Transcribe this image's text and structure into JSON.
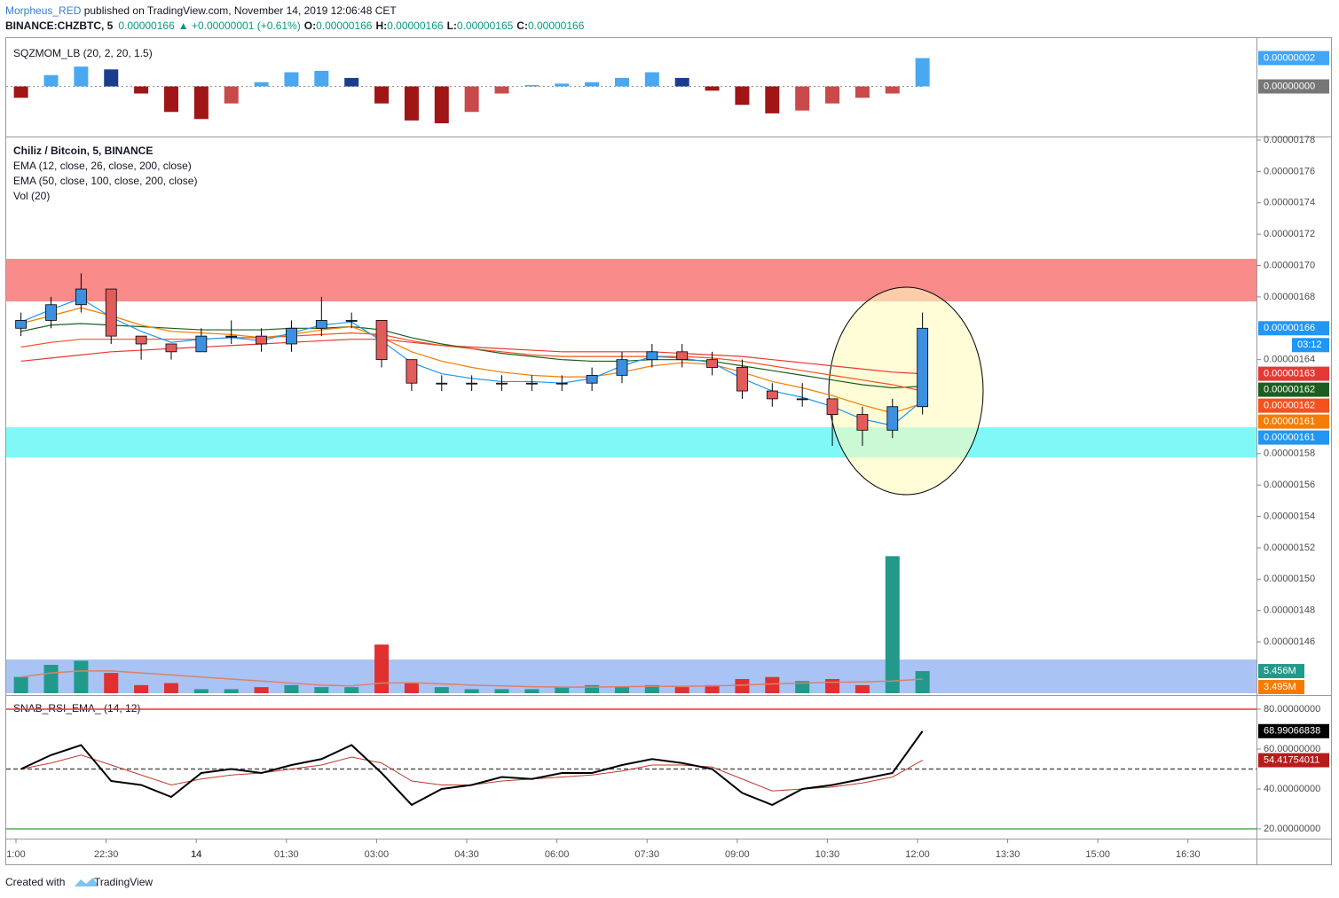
{
  "header": {
    "author": "Morpheus_RED",
    "published": " published on TradingView.com, November 14, 2019 12:06:48 CET",
    "symbol": "BINANCE:CHZBTC, 5",
    "last": "0.00000166",
    "change": "▲ +0.00000001 (+0.61%)",
    "ohlc": [
      {
        "label": "O:",
        "value": "0.00000166"
      },
      {
        "label": "H:",
        "value": "0.00000166"
      },
      {
        "label": "L:",
        "value": "0.00000165"
      },
      {
        "label": "C:",
        "value": "0.00000166"
      }
    ]
  },
  "footer": {
    "text": "Created with",
    "brand": "TradingView"
  },
  "chart_data": {
    "type": "candlestick",
    "title": "Chiliz / Bitcoin, 5, BINANCE",
    "legends": [
      "EMA (12, close, 26, close, 200, close)",
      "EMA (50, close, 100, close, 200, close)",
      "Vol (20)"
    ],
    "x": [
      5,
      35,
      65,
      95,
      125,
      155,
      185,
      215,
      245,
      275,
      305,
      335,
      365,
      395,
      425,
      455,
      485,
      515,
      545,
      575,
      605,
      635,
      665,
      695,
      725,
      755,
      785,
      815,
      845,
      875,
      905
    ],
    "open": [
      1.66e-06,
      1.665e-06,
      1.675e-06,
      1.685e-06,
      1.655e-06,
      1.65e-06,
      1.645e-06,
      1.655e-06,
      1.655e-06,
      1.65e-06,
      1.66e-06,
      1.665e-06,
      1.665e-06,
      1.64e-06,
      1.625e-06,
      1.625e-06,
      1.625e-06,
      1.625e-06,
      1.625e-06,
      1.625e-06,
      1.63e-06,
      1.64e-06,
      1.645e-06,
      1.64e-06,
      1.635e-06,
      1.62e-06,
      1.615e-06,
      1.615e-06,
      1.605e-06,
      1.595e-06,
      1.61e-06
    ],
    "high": [
      1.67e-06,
      1.68e-06,
      1.695e-06,
      1.685e-06,
      1.655e-06,
      1.65e-06,
      1.66e-06,
      1.665e-06,
      1.66e-06,
      1.665e-06,
      1.68e-06,
      1.67e-06,
      1.665e-06,
      1.64e-06,
      1.63e-06,
      1.63e-06,
      1.63e-06,
      1.63e-06,
      1.63e-06,
      1.635e-06,
      1.645e-06,
      1.65e-06,
      1.65e-06,
      1.645e-06,
      1.64e-06,
      1.625e-06,
      1.625e-06,
      1.615e-06,
      1.61e-06,
      1.615e-06,
      1.67e-06
    ],
    "low": [
      1.655e-06,
      1.66e-06,
      1.67e-06,
      1.65e-06,
      1.64e-06,
      1.64e-06,
      1.645e-06,
      1.65e-06,
      1.645e-06,
      1.645e-06,
      1.655e-06,
      1.66e-06,
      1.635e-06,
      1.62e-06,
      1.62e-06,
      1.62e-06,
      1.62e-06,
      1.62e-06,
      1.62e-06,
      1.62e-06,
      1.625e-06,
      1.635e-06,
      1.635e-06,
      1.63e-06,
      1.615e-06,
      1.61e-06,
      1.61e-06,
      1.585e-06,
      1.585e-06,
      1.59e-06,
      1.605e-06
    ],
    "close": [
      1.665e-06,
      1.675e-06,
      1.685e-06,
      1.655e-06,
      1.65e-06,
      1.645e-06,
      1.655e-06,
      1.655e-06,
      1.65e-06,
      1.66e-06,
      1.665e-06,
      1.665e-06,
      1.64e-06,
      1.625e-06,
      1.625e-06,
      1.625e-06,
      1.625e-06,
      1.625e-06,
      1.625e-06,
      1.63e-06,
      1.64e-06,
      1.645e-06,
      1.64e-06,
      1.635e-06,
      1.62e-06,
      1.615e-06,
      1.615e-06,
      1.605e-06,
      1.595e-06,
      1.61e-06,
      1.66e-06
    ],
    "up_color": "#3d8fe0",
    "down_color": "#e25c5c",
    "close_label": "0.00000166",
    "countdown": "03:12",
    "close_label_color": "#2196f3",
    "series": [
      {
        "color": "#e53935",
        "last_label": "0.00000163",
        "values": [
          1.639e-06,
          1.641e-06,
          1.643e-06,
          1.645e-06,
          1.646e-06,
          1.647e-06,
          1.648e-06,
          1.649e-06,
          1.65e-06,
          1.651e-06,
          1.652e-06,
          1.653e-06,
          1.653e-06,
          1.651e-06,
          1.649e-06,
          1.648e-06,
          1.647e-06,
          1.646e-06,
          1.645e-06,
          1.645e-06,
          1.645e-06,
          1.645e-06,
          1.644e-06,
          1.643e-06,
          1.642e-06,
          1.64e-06,
          1.638e-06,
          1.636e-06,
          1.634e-06,
          1.632e-06,
          1.631e-06
        ]
      },
      {
        "color": "#1b5e20",
        "last_label": "0.00000162",
        "values": [
          1.658e-06,
          1.662e-06,
          1.663e-06,
          1.662e-06,
          1.661e-06,
          1.66e-06,
          1.659e-06,
          1.659e-06,
          1.659e-06,
          1.66e-06,
          1.66e-06,
          1.661e-06,
          1.659e-06,
          1.654e-06,
          1.65e-06,
          1.647e-06,
          1.644e-06,
          1.642e-06,
          1.64e-06,
          1.639e-06,
          1.639e-06,
          1.64e-06,
          1.64e-06,
          1.639e-06,
          1.636e-06,
          1.633e-06,
          1.63e-06,
          1.627e-06,
          1.624e-06,
          1.622e-06,
          1.623e-06
        ]
      },
      {
        "color": "#f4511e",
        "last_label": "0.00000162",
        "values": [
          1.648e-06,
          1.651e-06,
          1.653e-06,
          1.653e-06,
          1.653e-06,
          1.653e-06,
          1.653e-06,
          1.654e-06,
          1.654e-06,
          1.655e-06,
          1.656e-06,
          1.657e-06,
          1.656e-06,
          1.652e-06,
          1.649e-06,
          1.647e-06,
          1.645e-06,
          1.643e-06,
          1.642e-06,
          1.642e-06,
          1.642e-06,
          1.642e-06,
          1.642e-06,
          1.641e-06,
          1.639e-06,
          1.636e-06,
          1.633e-06,
          1.63e-06,
          1.627e-06,
          1.624e-06,
          1.62e-06
        ]
      },
      {
        "color": "#f57c00",
        "last_label": "0.00000161",
        "values": [
          1.663e-06,
          1.668e-06,
          1.673e-06,
          1.668e-06,
          1.662e-06,
          1.658e-06,
          1.657e-06,
          1.656e-06,
          1.654e-06,
          1.656e-06,
          1.659e-06,
          1.661e-06,
          1.654e-06,
          1.645e-06,
          1.639e-06,
          1.635e-06,
          1.632e-06,
          1.63e-06,
          1.629e-06,
          1.629e-06,
          1.632e-06,
          1.636e-06,
          1.638e-06,
          1.637e-06,
          1.632e-06,
          1.626e-06,
          1.622e-06,
          1.617e-06,
          1.611e-06,
          1.606e-06,
          1.612e-06
        ]
      },
      {
        "color": "#2196f3",
        "last_label": "0.00000161",
        "values": [
          1.664e-06,
          1.672e-06,
          1.679e-06,
          1.667e-06,
          1.658e-06,
          1.651e-06,
          1.653e-06,
          1.654e-06,
          1.652e-06,
          1.657e-06,
          1.662e-06,
          1.664e-06,
          1.652e-06,
          1.638e-06,
          1.631e-06,
          1.628e-06,
          1.626e-06,
          1.626e-06,
          1.625e-06,
          1.628e-06,
          1.636e-06,
          1.642e-06,
          1.641e-06,
          1.638e-06,
          1.628e-06,
          1.62e-06,
          1.616e-06,
          1.61e-06,
          1.602e-06,
          1.598e-06,
          1.614e-06
        ]
      }
    ],
    "ylim": [
      1.4267e-06,
      1.7817e-06
    ],
    "yticks": [
      {
        "value": 1.78e-06,
        "label": "0.00000178"
      },
      {
        "value": 1.76e-06,
        "label": "0.00000176"
      },
      {
        "value": 1.74e-06,
        "label": "0.00000174"
      },
      {
        "value": 1.72e-06,
        "label": "0.00000172"
      },
      {
        "value": 1.7e-06,
        "label": "0.00000170"
      },
      {
        "value": 1.68e-06,
        "label": "0.00000168"
      },
      {
        "value": 1.64e-06,
        "label": "0.00000164"
      },
      {
        "value": 1.58e-06,
        "label": "0.00000158"
      },
      {
        "value": 1.56e-06,
        "label": "0.00000156"
      },
      {
        "value": 1.54e-06,
        "label": "0.00000154"
      },
      {
        "value": 1.52e-06,
        "label": "0.00000152"
      },
      {
        "value": 1.5e-06,
        "label": "0.00000150"
      },
      {
        "value": 1.48e-06,
        "label": "0.00000148"
      },
      {
        "value": 1.46e-06,
        "label": "0.00000146"
      }
    ],
    "xticks": [
      {
        "value": 0,
        "label": "1:00"
      },
      {
        "value": 90,
        "label": "22:30"
      },
      {
        "value": 180,
        "label": "14"
      },
      {
        "value": 270,
        "label": "01:30"
      },
      {
        "value": 360,
        "label": "03:00"
      },
      {
        "value": 450,
        "label": "04:30"
      },
      {
        "value": 540,
        "label": "06:00"
      },
      {
        "value": 630,
        "label": "07:30"
      },
      {
        "value": 720,
        "label": "09:00"
      },
      {
        "value": 810,
        "label": "10:30"
      },
      {
        "value": 900,
        "label": "12:00"
      },
      {
        "value": 990,
        "label": "13:30"
      },
      {
        "value": 1080,
        "label": "15:00"
      },
      {
        "value": 1170,
        "label": "16:30"
      }
    ],
    "volume": {
      "ylim": [
        0,
        40000000
      ],
      "up_color": "#22998a",
      "down_color": "#e03030",
      "ma_color": "#d9826a",
      "values": [
        4000000,
        7000000,
        8000000,
        5000000,
        2000000,
        2500000,
        1000000,
        1000000,
        1500000,
        2000000,
        1500000,
        1500000,
        12000000,
        2500000,
        1500000,
        1000000,
        1000000,
        1000000,
        1500000,
        2000000,
        1500000,
        2000000,
        1500000,
        2000000,
        3500000,
        4000000,
        3000000,
        3500000,
        2000000,
        33800000,
        5456000
      ],
      "last_label": "5.456M",
      "ma": [
        4000000,
        5000000,
        5500000,
        5500000,
        5000000,
        4500000,
        4000000,
        3500000,
        3000000,
        2500000,
        2000000,
        1800000,
        2500000,
        2600000,
        2300000,
        2000000,
        1800000,
        1600000,
        1500000,
        1500000,
        1600000,
        1700000,
        1700000,
        1800000,
        2000000,
        2300000,
        2500000,
        2700000,
        2800000,
        3000000,
        3495000
      ],
      "ma_label": "3.495M"
    },
    "momentum": {
      "title": "SQZMOM_LB (20, 2, 20, 1.5)",
      "ylim": [
        -3.47e-08,
        3.47e-08
      ],
      "values": [
        -8e-09,
        8e-09,
        1.4e-08,
        1.2e-08,
        -5e-09,
        -1.8e-08,
        -2.3e-08,
        -1.2e-08,
        3e-09,
        1e-08,
        1.1e-08,
        6e-09,
        -1.2e-08,
        -2.4e-08,
        -2.6e-08,
        -1.8e-08,
        -5e-09,
        1e-09,
        2e-09,
        3e-09,
        6e-09,
        1e-08,
        6e-09,
        -3e-09,
        -1.3e-08,
        -1.9e-08,
        -1.7e-08,
        -1.2e-08,
        -8e-09,
        -5e-09,
        2e-08
      ],
      "colors": {
        "up_rising": "#4aa8f0",
        "up_falling": "#1a3e8c",
        "down_falling": "#a01515",
        "down_rising": "#c94a4a"
      },
      "last_label": "0.00000002",
      "last_color": "#42a5f5",
      "yticks": [
        {
          "value": 0,
          "label": "0.00000000"
        }
      ]
    },
    "rsi": {
      "title": "SNAB_RSI_EMA_ (14, 12)",
      "ylim": [
        15.11,
        86.22
      ],
      "values": [
        50,
        57,
        62,
        44,
        42,
        36,
        48,
        50,
        48,
        52,
        55,
        62,
        48,
        32,
        40,
        42,
        46,
        45,
        48,
        48,
        52,
        55,
        53,
        50,
        38,
        32,
        40,
        42,
        45,
        48,
        68.99066838
      ],
      "ema": [
        50,
        53,
        57,
        52,
        47,
        42,
        45,
        47,
        48,
        50,
        52,
        56,
        53,
        44,
        42,
        42,
        44,
        45,
        46,
        47,
        49,
        52,
        52,
        51,
        45,
        39,
        40,
        41,
        43,
        46,
        54.41754011
      ],
      "color": "#000000",
      "ema_color": "#c0392b",
      "last_label": "68.99066838",
      "ema_last_label": "54.41754011",
      "yticks": [
        {
          "value": 80,
          "label": "80.00000000"
        },
        {
          "value": 60,
          "label": "60.00000000"
        },
        {
          "value": 40,
          "label": "40.00000000"
        },
        {
          "value": 20,
          "label": "20.00000000"
        }
      ],
      "levels": [
        {
          "value": 80,
          "color": "#e53935"
        },
        {
          "value": 50,
          "color": "#555555",
          "dash": true
        },
        {
          "value": 20,
          "color": "#4caf50"
        }
      ]
    }
  }
}
